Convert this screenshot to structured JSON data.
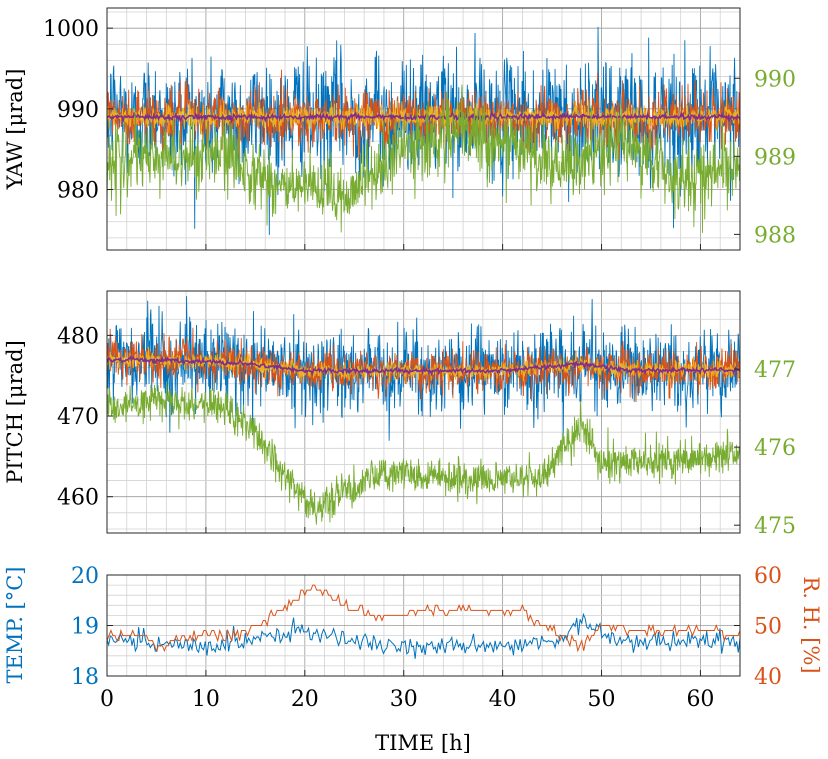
{
  "colors": {
    "blue": "#0072BD",
    "orange": "#D95319",
    "yellow": "#EDB120",
    "purple": "#7E2F8E",
    "green": "#77AC30",
    "grid_major": "#9a9a9a",
    "grid_minor": "#d2d2d2",
    "axis": "#262626"
  },
  "chart_data": [
    {
      "id": "yaw",
      "type": "line",
      "ylabel": "YAW [μrad]",
      "xlim": [
        0,
        64
      ],
      "ylim": [
        972.5,
        1002.5
      ],
      "yticks": [
        980,
        990,
        1000
      ],
      "yticklabels": [
        "980",
        "990",
        "1000"
      ],
      "y2lim": [
        987.8,
        990.9
      ],
      "y2ticks": [
        988,
        989,
        990
      ],
      "y2ticklabels": [
        "988",
        "989",
        "990"
      ],
      "grid": true,
      "band_series": [
        {
          "name": "yaw band outer",
          "color": "blue",
          "center": 989.0,
          "halfwidth": 6.5
        },
        {
          "name": "yaw band mid",
          "color": "orange",
          "center": 989.0,
          "halfwidth": 3.2
        },
        {
          "name": "yaw band inner",
          "color": "yellow",
          "center": 989.0,
          "halfwidth": 1.3
        },
        {
          "name": "yaw mean",
          "color": "purple",
          "center": 989.0,
          "halfwidth": 0.3
        }
      ],
      "right_series": {
        "name": "yaw (right axis)",
        "color": "green",
        "noise": 0.22,
        "trend": {
          "x": [
            0,
            6,
            12,
            18,
            24,
            30,
            36,
            42,
            46,
            52,
            58,
            64
          ],
          "y": [
            988.9,
            989.0,
            989.0,
            988.6,
            988.5,
            989.1,
            989.3,
            989.1,
            988.8,
            989.2,
            988.7,
            988.9
          ]
        }
      }
    },
    {
      "id": "pitch",
      "type": "line",
      "ylabel": "PITCH [μrad]",
      "xlim": [
        0,
        64
      ],
      "ylim": [
        455.5,
        485.5
      ],
      "yticks": [
        460,
        470,
        480
      ],
      "yticklabels": [
        "460",
        "470",
        "480"
      ],
      "y2lim": [
        474.9,
        478.0
      ],
      "y2ticks": [
        475,
        476,
        477
      ],
      "y2ticklabels": [
        "475",
        "476",
        "477"
      ],
      "grid": true,
      "band_series": [
        {
          "name": "pitch band outer",
          "color": "blue",
          "center": 476.0,
          "halfwidth": 4.5
        },
        {
          "name": "pitch band mid",
          "color": "orange",
          "center": 476.0,
          "halfwidth": 2.3
        },
        {
          "name": "pitch band inner",
          "color": "yellow",
          "center": 476.0,
          "halfwidth": 0.9
        },
        {
          "name": "pitch mean",
          "color": "purple",
          "center": 476.0,
          "halfwidth": 0.25
        }
      ],
      "center_trend": {
        "x": [
          0,
          10,
          14,
          20,
          40,
          48,
          52,
          64
        ],
        "y": [
          477.0,
          476.8,
          476.5,
          475.6,
          475.6,
          476.5,
          475.7,
          475.7
        ]
      },
      "right_series": {
        "name": "pitch (right axis)",
        "color": "green",
        "noise": 0.12,
        "trend": {
          "x": [
            0,
            6,
            12,
            15,
            18,
            21,
            24,
            28,
            36,
            44,
            48,
            50,
            54,
            64
          ],
          "y": [
            476.5,
            476.6,
            476.5,
            476.2,
            475.6,
            475.2,
            475.4,
            475.7,
            475.6,
            475.6,
            476.3,
            475.8,
            475.8,
            475.9
          ]
        }
      }
    },
    {
      "id": "environment",
      "type": "line",
      "xlabel": "TIME [h]",
      "xlim": [
        0,
        64
      ],
      "xticks": [
        0,
        10,
        20,
        30,
        40,
        50,
        60
      ],
      "xticklabels": [
        "0",
        "10",
        "20",
        "30",
        "40",
        "50",
        "60"
      ],
      "ylabel": "TEMP. [°C]",
      "ylim": [
        18,
        20
      ],
      "yticks": [
        18,
        19,
        20
      ],
      "yticklabels": [
        "18",
        "19",
        "20"
      ],
      "y2label": "R. H. [%]",
      "y2lim": [
        40,
        60
      ],
      "y2ticks": [
        40,
        50,
        60
      ],
      "y2ticklabels": [
        "40",
        "50",
        "60"
      ],
      "grid": true,
      "temperature": {
        "name": "TEMP.",
        "color": "blue",
        "noise": 0.18,
        "trend": {
          "x": [
            0,
            10,
            16,
            20,
            24,
            30,
            40,
            46,
            48,
            52,
            64
          ],
          "y": [
            18.7,
            18.6,
            18.8,
            18.9,
            18.7,
            18.6,
            18.6,
            18.7,
            19.1,
            18.7,
            18.7
          ]
        }
      },
      "humidity": {
        "name": "R. H.",
        "color": "orange",
        "x": [
          0,
          4,
          5,
          10,
          13,
          16,
          19,
          20,
          21,
          23,
          25,
          27,
          34,
          42,
          44,
          47,
          48,
          50,
          55,
          60,
          64
        ],
        "y": [
          48,
          48,
          46,
          48,
          48,
          51,
          55,
          56,
          58,
          55,
          53,
          52,
          53,
          53,
          50,
          47,
          46,
          50,
          49,
          49,
          48
        ]
      }
    }
  ]
}
